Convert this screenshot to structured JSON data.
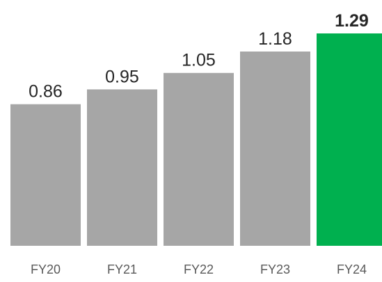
{
  "chart_data": {
    "type": "bar",
    "title": "",
    "xlabel": "",
    "ylabel": "",
    "categories": [
      "FY20",
      "FY21",
      "FY22",
      "FY23",
      "FY24"
    ],
    "values": [
      0.86,
      0.95,
      1.05,
      1.18,
      1.29
    ],
    "value_labels": [
      "0.86",
      "0.95",
      "1.05",
      "1.18",
      "1.29"
    ],
    "ylim": [
      0,
      1.29
    ],
    "grid": false,
    "legend": "none",
    "colors": {
      "default_bar": "#a6a6a6",
      "highlight_bar": "#00b04f",
      "highlight_label": "#00b04f"
    },
    "highlight_index": 4
  }
}
